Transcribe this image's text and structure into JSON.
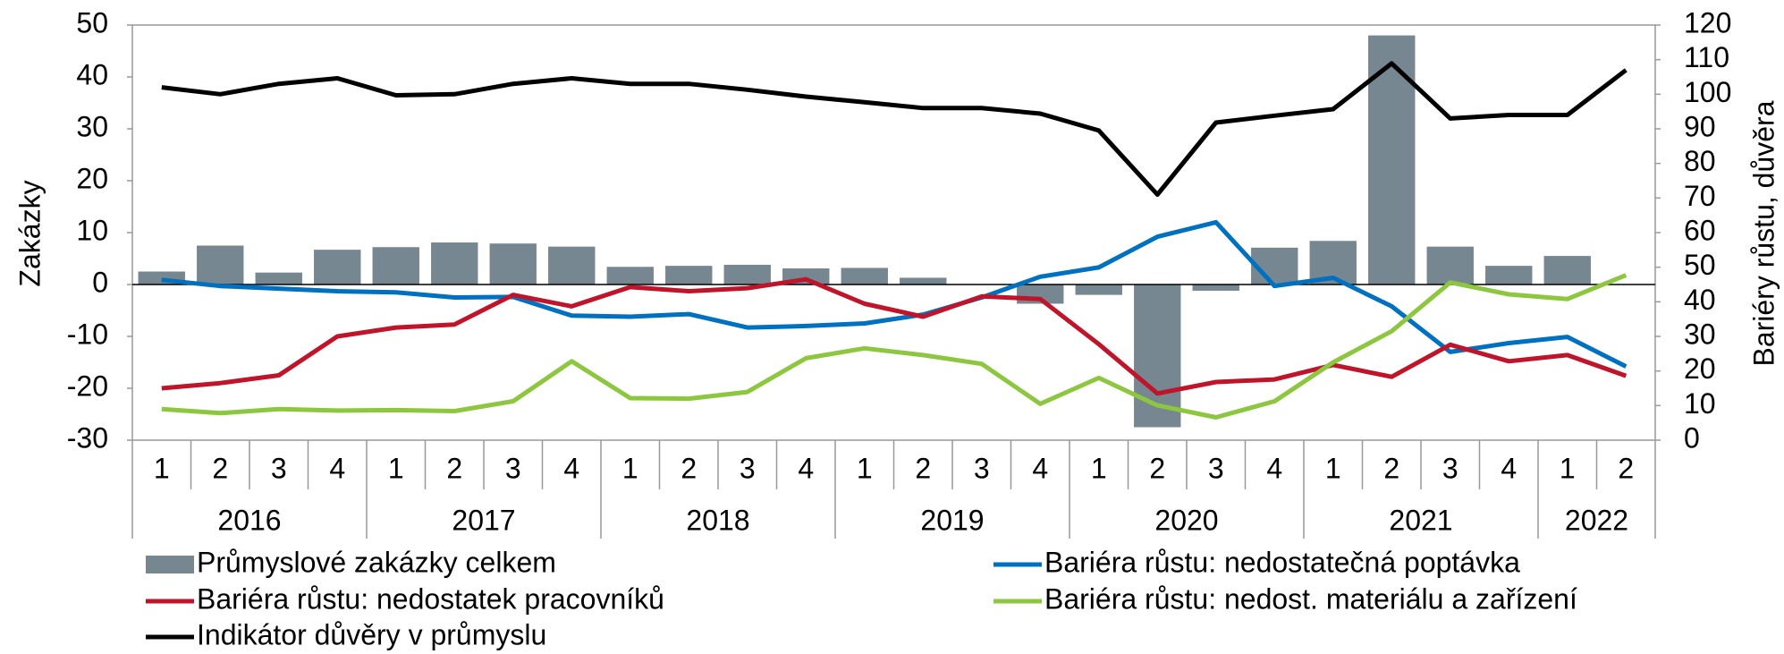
{
  "chart_data": {
    "type": "bar-line",
    "ylabel": "Zakázky",
    "y2label": "Bariéry růstu, důvěra",
    "categories": [
      "1",
      "2",
      "3",
      "4",
      "1",
      "2",
      "3",
      "4",
      "1",
      "2",
      "3",
      "4",
      "1",
      "2",
      "3",
      "4",
      "1",
      "2",
      "3",
      "4",
      "1",
      "2",
      "3",
      "4",
      "1",
      "2"
    ],
    "years": [
      "2016",
      "2017",
      "2018",
      "2019",
      "2020",
      "2021",
      "2022"
    ],
    "ylim": [
      -30,
      50
    ],
    "yticks": [
      -30,
      -20,
      -10,
      0,
      10,
      20,
      30,
      40,
      50
    ],
    "y2lim": [
      0,
      120
    ],
    "y2ticks": [
      0,
      10,
      20,
      30,
      40,
      50,
      60,
      70,
      80,
      90,
      100,
      110,
      120
    ],
    "series": [
      {
        "name": "Průmyslové zakázky celkem",
        "type": "bar",
        "color": "#778791",
        "values": [
          2.5,
          7.5,
          2.3,
          6.7,
          7.2,
          8.1,
          7.9,
          7.3,
          3.4,
          3.6,
          3.8,
          3.1,
          3.2,
          1.3,
          0,
          -3.7,
          -2,
          -27.5,
          -1.2,
          7.1,
          8.4,
          48,
          7.3,
          3.6,
          5.5,
          null
        ]
      },
      {
        "name": "Bariéra růstu: nedostatečná poptávka",
        "type": "line",
        "color": "#0070c0",
        "values": [
          0.9,
          -0.3,
          -0.8,
          -1.3,
          -1.5,
          -2.5,
          -2.4,
          -6,
          -6.2,
          -5.7,
          -8.3,
          -8,
          -7.5,
          -5.8,
          -2.5,
          1.5,
          3.3,
          9.2,
          12,
          -0.3,
          1.3,
          -4.2,
          -13,
          -11.3,
          -10.1,
          -15.8
        ]
      },
      {
        "name": "Bariéra růstu: nedostatek pracovníků",
        "type": "line",
        "color": "#c0142a",
        "values": [
          -20,
          -19,
          -17.5,
          -10,
          -8.3,
          -7.7,
          -2,
          -4.2,
          -0.5,
          -1.3,
          -0.7,
          1,
          -3.7,
          -6.2,
          -2.3,
          -2.8,
          -11.5,
          -21,
          -18.8,
          -18.3,
          -15.5,
          -17.8,
          -11.6,
          -14.8,
          -13.6,
          -17.6
        ]
      },
      {
        "name": "Bariéra růstu: nedost. materiálu a zařízení",
        "type": "line",
        "color": "#8dc63f",
        "values": [
          -24,
          -24.8,
          -24,
          -24.3,
          -24.2,
          -24.4,
          -22.5,
          -14.8,
          -21.9,
          -22,
          -20.7,
          -14.2,
          -12.3,
          -13.6,
          -15.3,
          -23,
          -18,
          -23.3,
          -25.6,
          -22.5,
          -15,
          -9,
          0.4,
          -1.9,
          -2.8,
          1.8
        ]
      },
      {
        "name": "Indikátor důvěry v průmyslu",
        "type": "line",
        "axis": "y2",
        "color": "#000000",
        "values": [
          102,
          100,
          103,
          104.6,
          99.7,
          100,
          103,
          104.6,
          103,
          103,
          101.3,
          99.3,
          97.7,
          96,
          96,
          94.4,
          89.5,
          71,
          91.8,
          93.8,
          95.7,
          108.9,
          93,
          94,
          94,
          107
        ]
      }
    ]
  }
}
